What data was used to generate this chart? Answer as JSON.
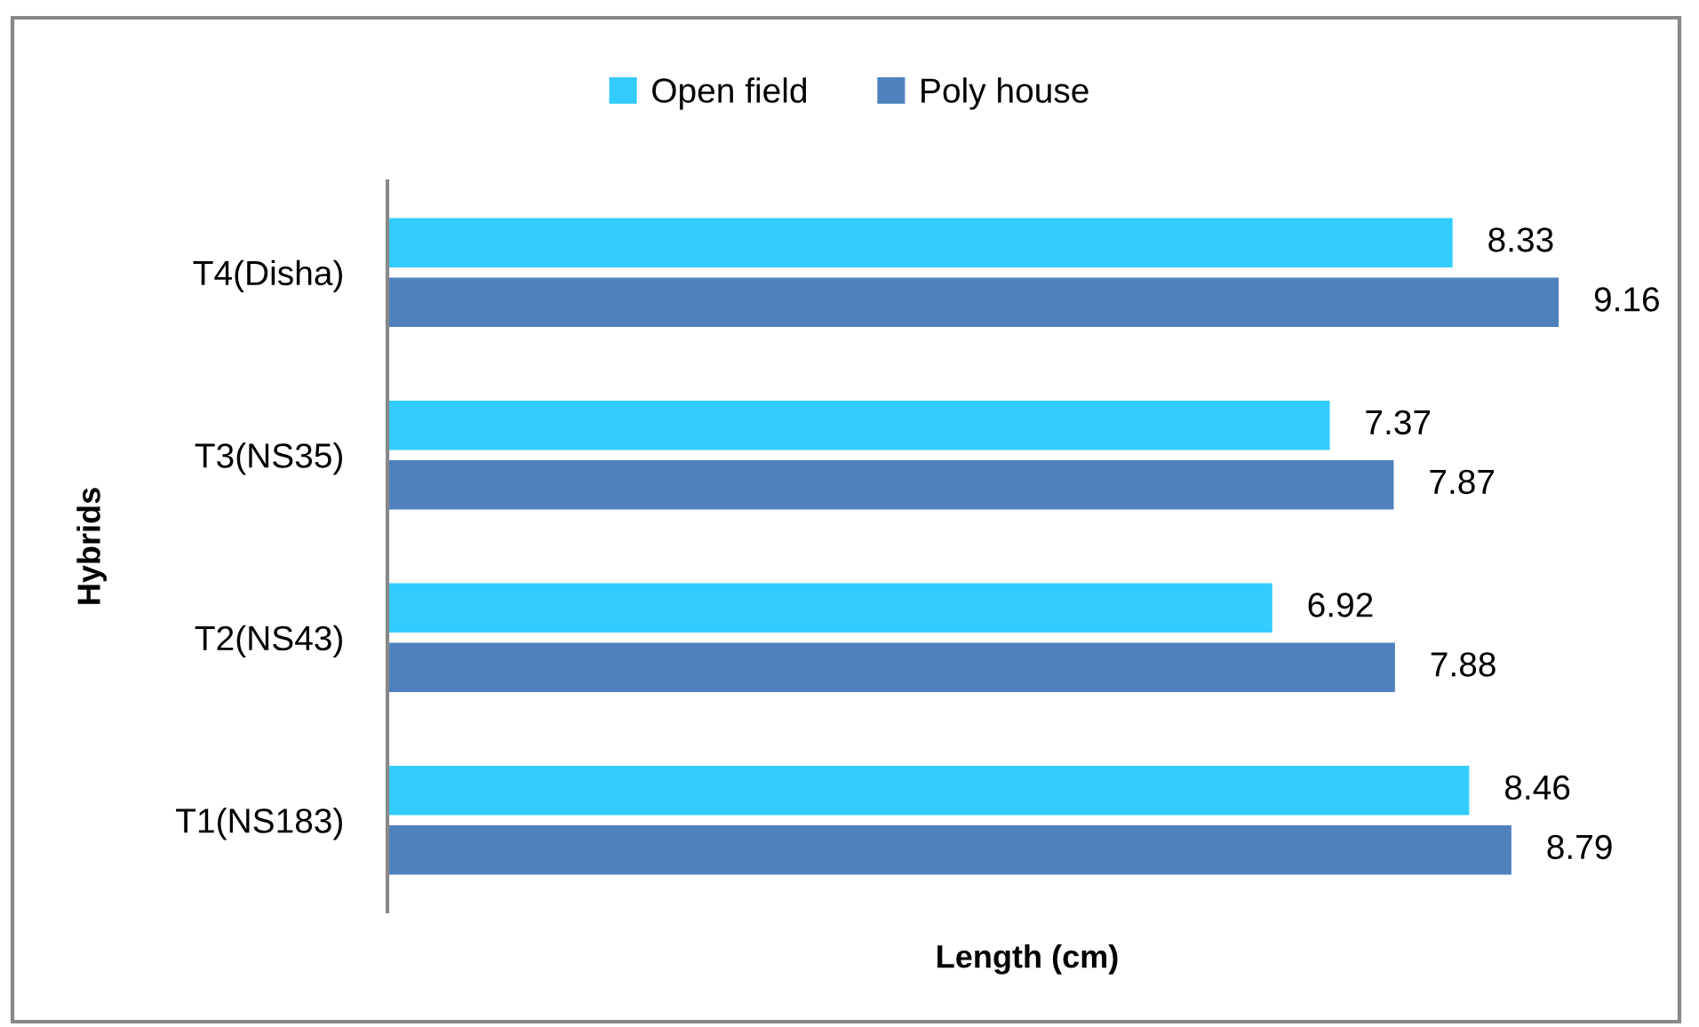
{
  "chart_data": {
    "type": "bar",
    "orientation": "horizontal",
    "categories": [
      "T4(Disha)",
      "T3(NS35)",
      "T2(NS43)",
      "T1(NS183)"
    ],
    "series": [
      {
        "name": "Open field",
        "color": "#33ccff",
        "values": [
          8.33,
          7.37,
          6.92,
          8.46
        ]
      },
      {
        "name": "Poly house",
        "color": "#4f81bd",
        "values": [
          9.16,
          7.87,
          7.88,
          8.79
        ]
      }
    ],
    "xlabel": "Length (cm)",
    "ylabel": "Hybrids",
    "tick_labels": "y",
    "data_labels": true,
    "legend": "top",
    "grid": false
  }
}
